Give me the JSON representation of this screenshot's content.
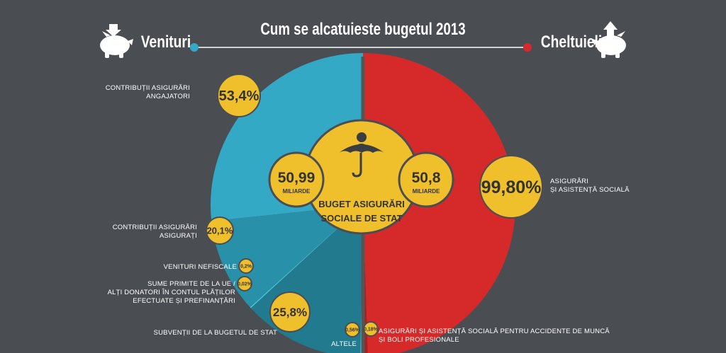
{
  "title": "Cum se alcatuieste bugetul 2013",
  "left_header": "Venituri",
  "right_header": "Cheltuieli",
  "center": {
    "title_line1": "BUGET ASIGURĂRI",
    "title_line2": "SOCIALE DE STAT",
    "left_value": "50,99",
    "left_unit": "MILIARDE",
    "right_value": "50,8",
    "right_unit": "MILIARDE"
  },
  "colors": {
    "background": "#4a4d52",
    "venituri": "#33a9c6",
    "cheltuieli": "#d62a2a",
    "bubble": "#f0bf2c"
  },
  "chart_data": {
    "type": "pie",
    "title": "Cum se alcatuieste bugetul 2013",
    "halves": [
      {
        "name": "Venituri",
        "total": "50,99",
        "unit": "MILIARDE",
        "slices": [
          {
            "label_lines": [
              "CONTRIBUȚII ASIGURĂRI",
              "ANGAJATORI"
            ],
            "value": 53.4,
            "display": "53,4%",
            "color": "#33a9c6"
          },
          {
            "label_lines": [
              "CONTRIBUȚII ASIGURĂRI",
              "ASIGURAȚI"
            ],
            "value": 20.1,
            "display": "20,1%",
            "color": "#2990a9"
          },
          {
            "label_lines": [
              "VENITURI NEFISCALE"
            ],
            "value": 0.2,
            "display": "0,2%",
            "color": "#4fc7e4"
          },
          {
            "label_lines": [
              "SUME PRIMITE DE LA UE /",
              "ALȚI DONATORI ÎN CONTUL PLĂȚILOR",
              "EFECTUATE ȘI PREFINANȚĂRI"
            ],
            "value": 0.02,
            "display": "0,02%",
            "color": "#3bb6d4"
          },
          {
            "label_lines": [
              "SUBVENȚII DE LA BUGETUL DE STAT"
            ],
            "value": 25.8,
            "display": "25,8%",
            "color": "#227a8f"
          },
          {
            "label_lines": [
              "ALTELE"
            ],
            "value": 0.56,
            "display": "0,56%",
            "color": "#46c0dd"
          }
        ]
      },
      {
        "name": "Cheltuieli",
        "total": "50,8",
        "unit": "MILIARDE",
        "slices": [
          {
            "label_lines": [
              "ASIGURĂRI ȘI ASISTENȚĂ SOCIALĂ PENTRU ACCIDENTE DE MUNCĂ",
              "ȘI BOLI PROFESIONALE"
            ],
            "value": 0.18,
            "display": "0,18%",
            "color": "#a81f1f"
          },
          {
            "label_lines": [
              "ASIGURĂRI",
              "ȘI ASISTENȚĂ SOCIALĂ"
            ],
            "value": 99.8,
            "display": "99,80%",
            "color": "#d62a2a"
          }
        ]
      }
    ]
  }
}
